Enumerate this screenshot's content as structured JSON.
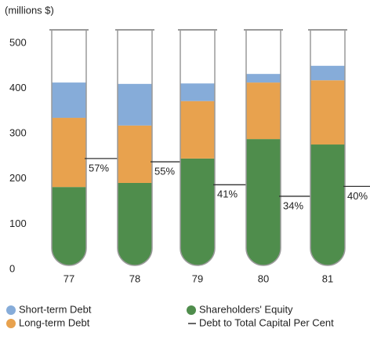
{
  "chart_data": {
    "type": "bar",
    "stacked": true,
    "y_label": "(millions $)",
    "categories": [
      "77",
      "78",
      "79",
      "80",
      "81"
    ],
    "ylim": [
      0,
      500
    ],
    "yticks": [
      0,
      100,
      200,
      300,
      400,
      500
    ],
    "series": [
      {
        "name": "Short-term Debt",
        "color": "#86acd9",
        "values": [
          78,
          92,
          39,
          19,
          32
        ]
      },
      {
        "name": "Long-term Debt",
        "color": "#e8a24e",
        "values": [
          153,
          127,
          127,
          125,
          142
        ]
      },
      {
        "name": "Shareholders' Equity",
        "color": "#4f8d4c",
        "values": [
          182,
          191,
          245,
          288,
          276
        ]
      }
    ],
    "ratio": {
      "name": "Debt to Total Capital Per Cent",
      "values": [
        57,
        55,
        41,
        34,
        40
      ],
      "value_labels": [
        "57%",
        "55%",
        "41%",
        "34%",
        "40%"
      ]
    }
  }
}
